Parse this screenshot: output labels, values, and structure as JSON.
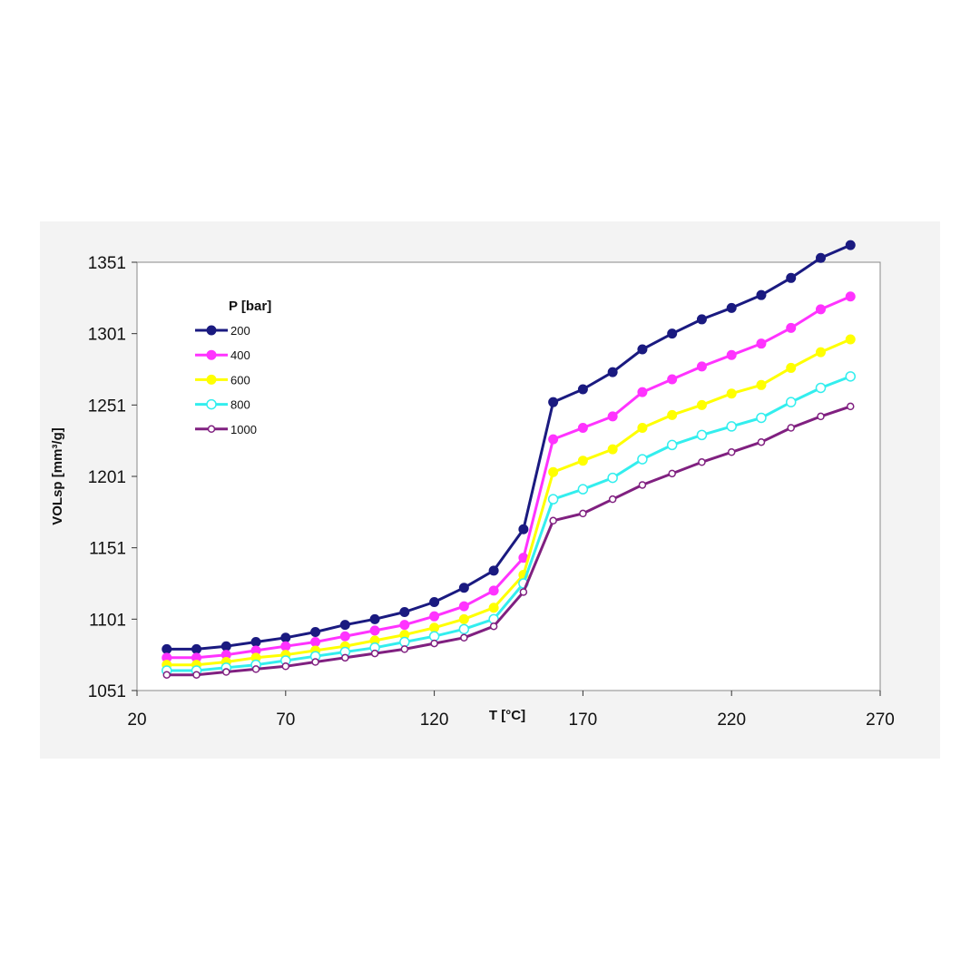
{
  "chart_data": {
    "type": "line",
    "title": "",
    "xlabel": "T [°C]",
    "ylabel": "VOLsp [mm³/g]",
    "xlim": [
      20,
      270
    ],
    "ylim": [
      1051,
      1351
    ],
    "x_ticks": [
      "20",
      "70",
      "120",
      "170",
      "220",
      "270"
    ],
    "y_ticks": [
      "1051",
      "1101",
      "1151",
      "1201",
      "1251",
      "1301",
      "1351"
    ],
    "legend_title": "P [bar]",
    "legend_position": "top-left",
    "grid": false,
    "x": [
      30,
      40,
      50,
      60,
      70,
      80,
      90,
      100,
      110,
      120,
      130,
      140,
      150,
      160,
      170,
      180,
      190,
      200,
      210,
      220,
      230,
      240,
      250,
      260
    ],
    "series": [
      {
        "name": "200",
        "color": "#1a1a80",
        "marker": "filled",
        "values": [
          1080,
          1080,
          1082,
          1085,
          1088,
          1092,
          1097,
          1101,
          1106,
          1113,
          1123,
          1135,
          1164,
          1253,
          1262,
          1274,
          1290,
          1301,
          1311,
          1319,
          1328,
          1340,
          1354,
          1363
        ]
      },
      {
        "name": "400",
        "color": "#ff33ff",
        "marker": "filled",
        "values": [
          1074,
          1074,
          1076,
          1079,
          1082,
          1085,
          1089,
          1093,
          1097,
          1103,
          1110,
          1121,
          1144,
          1227,
          1235,
          1243,
          1260,
          1269,
          1278,
          1286,
          1294,
          1305,
          1318,
          1327
        ]
      },
      {
        "name": "600",
        "color": "#ffff00",
        "marker": "filled",
        "values": [
          1069,
          1069,
          1071,
          1074,
          1076,
          1079,
          1082,
          1086,
          1090,
          1095,
          1101,
          1109,
          1132,
          1204,
          1212,
          1220,
          1235,
          1244,
          1251,
          1259,
          1265,
          1277,
          1288,
          1297
        ]
      },
      {
        "name": "800",
        "color": "#33eeee",
        "marker": "open",
        "values": [
          1065,
          1065,
          1067,
          1069,
          1072,
          1075,
          1078,
          1081,
          1085,
          1089,
          1094,
          1101,
          1126,
          1185,
          1192,
          1200,
          1213,
          1223,
          1230,
          1236,
          1242,
          1253,
          1263,
          1271
        ]
      },
      {
        "name": "1000",
        "color": "#802080",
        "marker": "open-small",
        "values": [
          1062,
          1062,
          1064,
          1066,
          1068,
          1071,
          1074,
          1077,
          1080,
          1084,
          1088,
          1096,
          1120,
          1170,
          1175,
          1185,
          1195,
          1203,
          1211,
          1218,
          1225,
          1235,
          1243,
          1250
        ]
      }
    ]
  }
}
